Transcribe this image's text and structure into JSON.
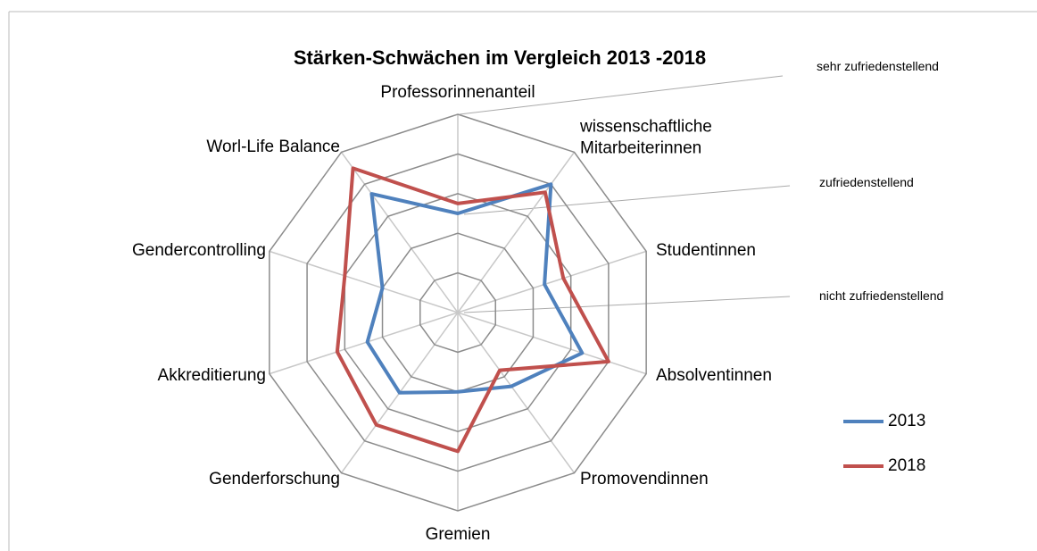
{
  "chart_data": {
    "type": "radar",
    "title": "Stärken-Schwächen im Vergleich 2013 -2018",
    "categories": [
      "Professorinnenanteil",
      "wissenschaftliche Mitarbeiterinnen",
      "Studentinnen",
      "Absolventinnen",
      "Promovendinnen",
      "Gremien",
      "Genderforschung",
      "Akkreditierung",
      "Gendercontrolling",
      "Worl-Life Balance"
    ],
    "series": [
      {
        "name": "2013",
        "color": "#4f81bd",
        "values": [
          2.5,
          4.0,
          2.3,
          3.3,
          2.3,
          2.0,
          2.5,
          2.4,
          2.0,
          3.7
        ]
      },
      {
        "name": "2018",
        "color": "#c0504d",
        "values": [
          2.75,
          3.75,
          2.8,
          4.0,
          1.8,
          3.5,
          3.5,
          3.2,
          3.0,
          4.5
        ]
      }
    ],
    "ylim": [
      0,
      5
    ],
    "yticks": [
      0,
      1,
      2,
      3,
      4,
      5
    ],
    "grid": true,
    "annotations": [
      "sehr zufriedenstellend",
      "zufriedenstellend",
      "nicht zufriedenstellend"
    ]
  }
}
